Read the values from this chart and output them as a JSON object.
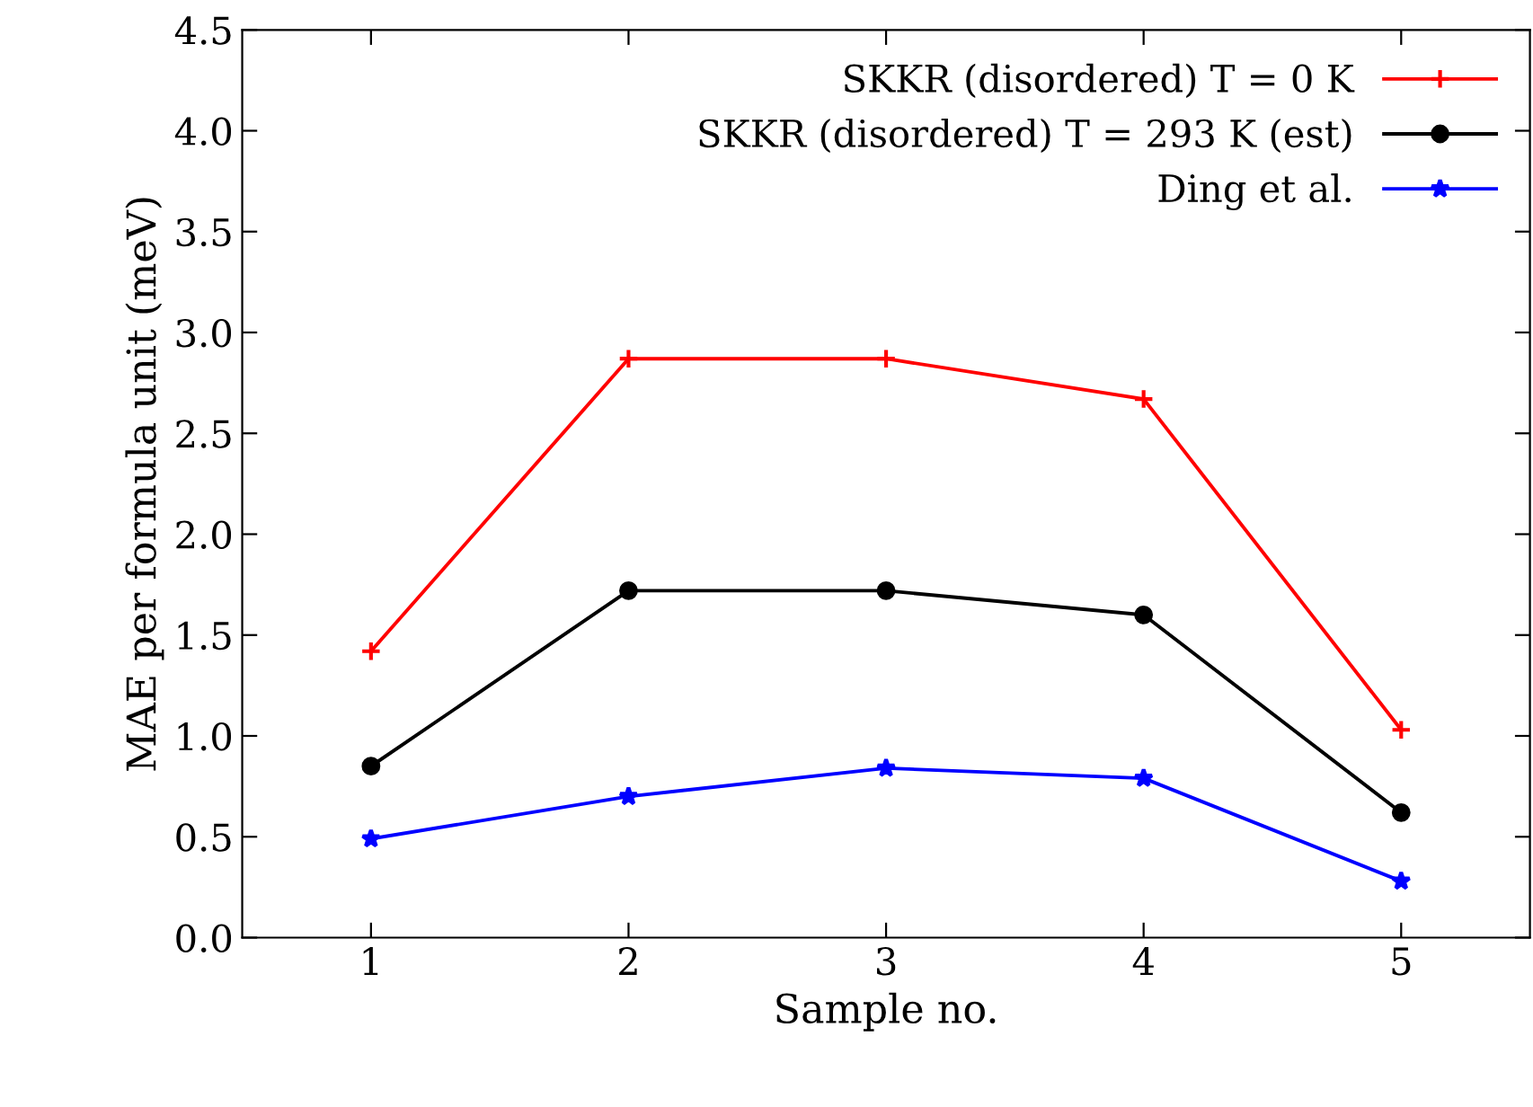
{
  "chart_data": {
    "type": "line",
    "xlabel": "Sample no.",
    "ylabel": "MAE per formula unit (meV)",
    "x": [
      1,
      2,
      3,
      4,
      5
    ],
    "xlim": [
      0.5,
      5.5
    ],
    "xticks": [
      1,
      2,
      3,
      4,
      5
    ],
    "ylim": [
      0,
      4.5
    ],
    "yticks": [
      {
        "value": 0,
        "label": "0.0"
      },
      {
        "value": 0.5,
        "label": "0.5"
      },
      {
        "value": 1,
        "label": "1.0"
      },
      {
        "value": 1.5,
        "label": "1.5"
      },
      {
        "value": 2,
        "label": "2.0"
      },
      {
        "value": 2.5,
        "label": "2.5"
      },
      {
        "value": 3,
        "label": "3.0"
      },
      {
        "value": 3.5,
        "label": "3.5"
      },
      {
        "value": 4,
        "label": "4.0"
      },
      {
        "value": 4.5,
        "label": "4.5"
      }
    ],
    "grid": false,
    "legend": "top right",
    "line_style": "solid",
    "series": [
      {
        "name": "SKKR (disordered) T = 0 K",
        "color": "#ff0000",
        "marker": "cross",
        "values": [
          1.42,
          2.87,
          2.87,
          2.67,
          1.03
        ]
      },
      {
        "name": "SKKR (disordered) T = 293 K (est)",
        "color": "#000000",
        "marker": "circle",
        "values": [
          0.85,
          1.72,
          1.72,
          1.6,
          0.62
        ]
      },
      {
        "name": "Ding et al.",
        "color": "#0000ff",
        "marker": "star",
        "values": [
          0.49,
          0.7,
          0.84,
          0.79,
          0.28
        ]
      }
    ]
  }
}
